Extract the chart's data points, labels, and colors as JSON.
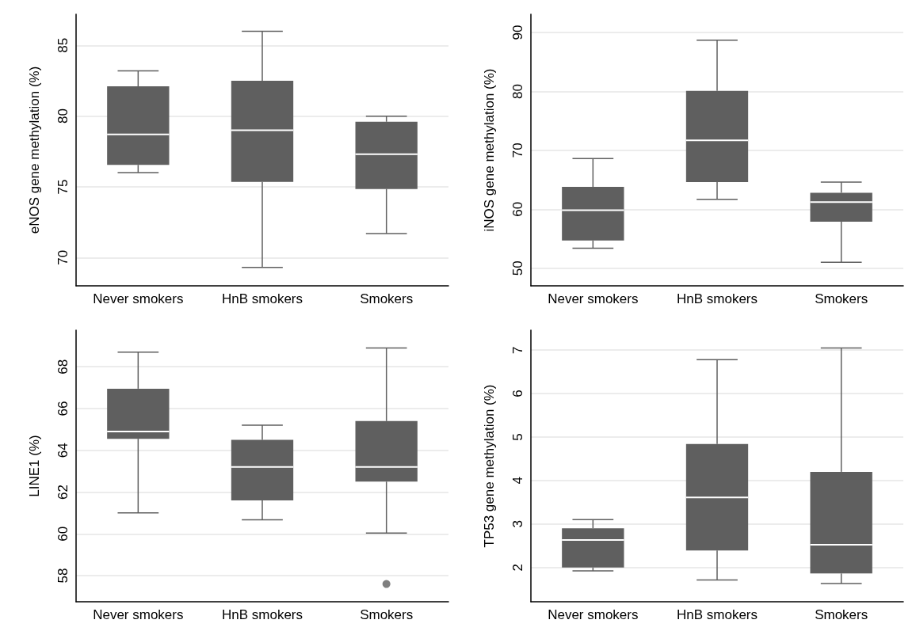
{
  "chart_data": [
    {
      "type": "box",
      "ylabel": "eNOS gene methylation (%)",
      "categories": [
        "Never smokers",
        "HnB smokers",
        "Smokers"
      ],
      "color": "#5f5f5f",
      "ylim": [
        68,
        87.2
      ],
      "yticks": [
        70,
        75,
        80,
        85
      ],
      "grid": "y",
      "boxes": [
        {
          "low": 76.0,
          "q1": 76.55,
          "median": 78.7,
          "q3": 82.1,
          "high": 83.2
        },
        {
          "low": 69.3,
          "q1": 75.35,
          "median": 79.0,
          "q3": 82.5,
          "high": 86.0
        },
        {
          "low": 71.7,
          "q1": 74.85,
          "median": 77.3,
          "q3": 79.6,
          "high": 80.0
        }
      ]
    },
    {
      "type": "box",
      "ylabel": "iNOS gene methylation (%)",
      "categories": [
        "Never smokers",
        "HnB smokers",
        "Smokers"
      ],
      "color": "#5f5f5f",
      "ylim": [
        47,
        93.1
      ],
      "yticks": [
        50,
        60,
        70,
        80,
        90
      ],
      "grid": "y",
      "boxes": [
        {
          "low": 53.4,
          "q1": 54.7,
          "median": 59.85,
          "q3": 63.8,
          "high": 68.6
        },
        {
          "low": 61.7,
          "q1": 64.6,
          "median": 71.7,
          "q3": 80.1,
          "high": 88.7
        },
        {
          "low": 51.0,
          "q1": 57.9,
          "median": 61.2,
          "q3": 62.8,
          "high": 64.6
        }
      ]
    },
    {
      "type": "box",
      "ylabel": "LINE1 (%)",
      "categories": [
        "Never smokers",
        "HnB smokers",
        "Smokers"
      ],
      "color": "#5f5f5f",
      "ylim": [
        56.75,
        69.75
      ],
      "yticks": [
        58,
        60,
        62,
        64,
        66,
        68
      ],
      "grid": "y",
      "boxes": [
        {
          "low": 61.0,
          "q1": 64.55,
          "median": 64.9,
          "q3": 66.95,
          "high": 68.7
        },
        {
          "low": 60.67,
          "q1": 61.6,
          "median": 63.2,
          "q3": 64.5,
          "high": 65.2
        },
        {
          "low": 60.04,
          "q1": 62.5,
          "median": 63.2,
          "q3": 65.4,
          "high": 68.9,
          "outliers": [
            57.6
          ]
        }
      ]
    },
    {
      "type": "box",
      "ylabel": "TP53 gene methylation (%)",
      "categories": [
        "Never smokers",
        "HnB smokers",
        "Smokers"
      ],
      "color": "#5f5f5f",
      "ylim": [
        1.21,
        7.46
      ],
      "yticks": [
        2,
        3,
        4,
        5,
        6,
        7
      ],
      "grid": "y",
      "boxes": [
        {
          "low": 1.92,
          "q1": 2.0,
          "median": 2.63,
          "q3": 2.9,
          "high": 3.1
        },
        {
          "low": 1.71,
          "q1": 2.39,
          "median": 3.61,
          "q3": 4.84,
          "high": 6.78
        },
        {
          "low": 1.63,
          "q1": 1.86,
          "median": 2.52,
          "q3": 4.2,
          "high": 7.05
        }
      ]
    }
  ]
}
